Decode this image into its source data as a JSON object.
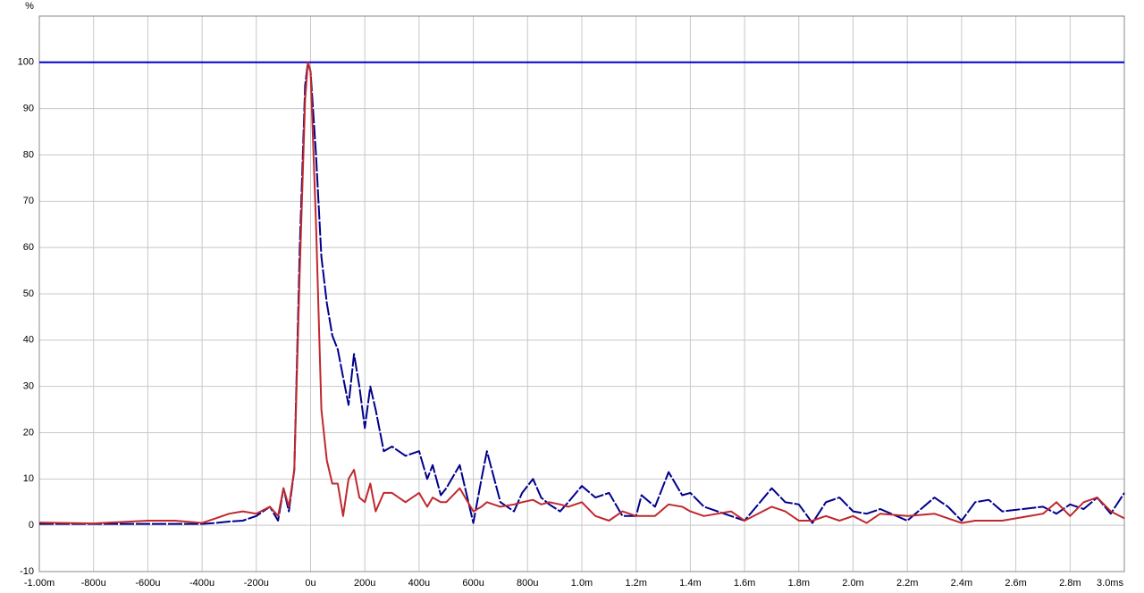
{
  "chart_data": {
    "type": "line",
    "y_label": "%",
    "x": [
      -1,
      -0.8,
      -0.6,
      -0.5,
      -0.4,
      -0.35,
      -0.3,
      -0.25,
      -0.2,
      -0.15,
      -0.12,
      -0.1,
      -0.08,
      -0.06,
      -0.04,
      -0.02,
      -0.01,
      0,
      0.02,
      0.04,
      0.06,
      0.08,
      0.1,
      0.12,
      0.14,
      0.16,
      0.18,
      0.2,
      0.22,
      0.24,
      0.27,
      0.3,
      0.35,
      0.4,
      0.43,
      0.45,
      0.48,
      0.5,
      0.55,
      0.6,
      0.63,
      0.65,
      0.7,
      0.75,
      0.78,
      0.82,
      0.85,
      0.88,
      0.92,
      0.95,
      1,
      1.05,
      1.1,
      1.15,
      1.2,
      1.22,
      1.27,
      1.32,
      1.37,
      1.4,
      1.45,
      1.5,
      1.55,
      1.6,
      1.7,
      1.75,
      1.8,
      1.85,
      1.9,
      1.95,
      2,
      2.05,
      2.1,
      2.2,
      2.3,
      2.35,
      2.4,
      2.45,
      2.5,
      2.55,
      2.7,
      2.75,
      2.8,
      2.85,
      2.9,
      2.95,
      3
    ],
    "series": [
      {
        "color": "#0000cc",
        "x": [
          -1,
          3
        ],
        "values": [
          100,
          100
        ]
      },
      {
        "color": "#00008b",
        "dashed": true,
        "values": [
          0.3,
          0.3,
          0.3,
          0.3,
          0.3,
          0.5,
          0.8,
          1,
          2,
          4,
          1,
          8,
          3,
          12,
          60,
          95,
          100,
          98,
          80,
          58,
          48,
          41,
          38,
          32,
          26,
          37,
          30,
          21,
          30,
          25,
          16,
          17,
          15,
          16,
          10,
          13,
          6.5,
          8,
          13,
          0.5,
          10,
          16,
          5,
          3,
          7,
          10,
          6,
          4.5,
          3,
          5,
          8.5,
          6,
          7,
          2,
          2,
          6.5,
          4,
          11.5,
          6.5,
          7,
          4,
          3,
          2,
          1,
          8,
          5,
          4.5,
          0.5,
          5,
          6,
          3,
          2.5,
          3.5,
          1,
          6,
          4,
          1,
          5,
          5.5,
          3,
          4,
          2.5,
          4.5,
          3.5,
          6,
          2.5,
          7
        ]
      },
      {
        "color": "#c0282d",
        "values": [
          0.6,
          0.4,
          1,
          1,
          0.5,
          1.5,
          2.5,
          3,
          2.5,
          4,
          2,
          8,
          4,
          12,
          55,
          92,
          100,
          98,
          65,
          25,
          14,
          9,
          9,
          2,
          10,
          12,
          6,
          5,
          9,
          3,
          7,
          7,
          5,
          7,
          4,
          6,
          5,
          5,
          8,
          3,
          4,
          5,
          4,
          4.5,
          5,
          5.5,
          4.5,
          5,
          4.5,
          4,
          5,
          2,
          1,
          3,
          2,
          2,
          2,
          4.5,
          4,
          3,
          2,
          2.5,
          3,
          1,
          4,
          3,
          1,
          1,
          2,
          1,
          2,
          0.5,
          2.5,
          2,
          2.5,
          1.5,
          0.5,
          1,
          1,
          1,
          2.5,
          5,
          2,
          5,
          6,
          3,
          1.5
        ]
      }
    ],
    "xlim": [
      -1,
      3
    ],
    "xticks": [
      {
        "value": -1,
        "label": "-1.00m"
      },
      {
        "value": -0.8,
        "label": "-800u"
      },
      {
        "value": -0.6,
        "label": "-600u"
      },
      {
        "value": -0.4,
        "label": "-400u"
      },
      {
        "value": -0.2,
        "label": "-200u"
      },
      {
        "value": 0,
        "label": "0u"
      },
      {
        "value": 0.2,
        "label": "200u"
      },
      {
        "value": 0.4,
        "label": "400u"
      },
      {
        "value": 0.6,
        "label": "600u"
      },
      {
        "value": 0.8,
        "label": "800u"
      },
      {
        "value": 1,
        "label": "1.0m"
      },
      {
        "value": 1.2,
        "label": "1.2m"
      },
      {
        "value": 1.4,
        "label": "1.4m"
      },
      {
        "value": 1.6,
        "label": "1.6m"
      },
      {
        "value": 1.8,
        "label": "1.8m"
      },
      {
        "value": 2,
        "label": "2.0m"
      },
      {
        "value": 2.2,
        "label": "2.2m"
      },
      {
        "value": 2.4,
        "label": "2.4m"
      },
      {
        "value": 2.6,
        "label": "2.6m"
      },
      {
        "value": 2.8,
        "label": "2.8m"
      },
      {
        "value": 3,
        "label": "3.0ms"
      }
    ],
    "ylim": [
      -10,
      110
    ],
    "yticks": [
      -10,
      0,
      10,
      20,
      30,
      40,
      50,
      60,
      70,
      80,
      90,
      100
    ],
    "grid": true
  }
}
